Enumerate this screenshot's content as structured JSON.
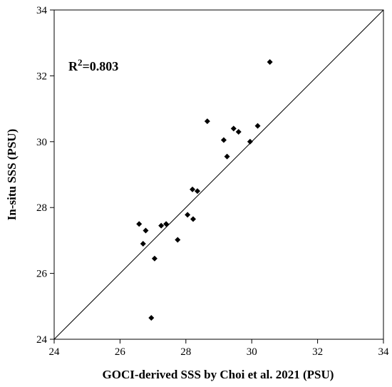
{
  "chart_data": {
    "type": "scatter",
    "title": "",
    "xlabel": "GOCI-derived SSS by Choi et al. 2021 (PSU)",
    "ylabel": "In-situ SSS (PSU)",
    "xlim": [
      24,
      34
    ],
    "ylim": [
      24,
      34
    ],
    "xticks": [
      "24",
      "26",
      "28",
      "30",
      "32",
      "34"
    ],
    "yticks": [
      "24",
      "26",
      "28",
      "30",
      "32",
      "34"
    ],
    "grid": false,
    "legend": "none",
    "reference_line": "1:1",
    "annotation": {
      "base": "R",
      "sup": "2",
      "value": "=0.803"
    },
    "marker": "diamond",
    "color": "#000000",
    "points": [
      {
        "x": 26.58,
        "y": 27.5
      },
      {
        "x": 26.7,
        "y": 26.9
      },
      {
        "x": 26.78,
        "y": 27.3
      },
      {
        "x": 26.95,
        "y": 24.65
      },
      {
        "x": 27.05,
        "y": 26.45
      },
      {
        "x": 27.25,
        "y": 27.45
      },
      {
        "x": 27.4,
        "y": 27.5
      },
      {
        "x": 27.75,
        "y": 27.02
      },
      {
        "x": 28.05,
        "y": 27.78
      },
      {
        "x": 28.2,
        "y": 28.55
      },
      {
        "x": 28.22,
        "y": 27.65
      },
      {
        "x": 28.35,
        "y": 28.5
      },
      {
        "x": 28.65,
        "y": 30.62
      },
      {
        "x": 29.15,
        "y": 30.05
      },
      {
        "x": 29.25,
        "y": 29.55
      },
      {
        "x": 29.45,
        "y": 30.4
      },
      {
        "x": 29.6,
        "y": 30.3
      },
      {
        "x": 29.95,
        "y": 30.0
      },
      {
        "x": 30.18,
        "y": 30.48
      },
      {
        "x": 30.55,
        "y": 32.42
      }
    ]
  }
}
